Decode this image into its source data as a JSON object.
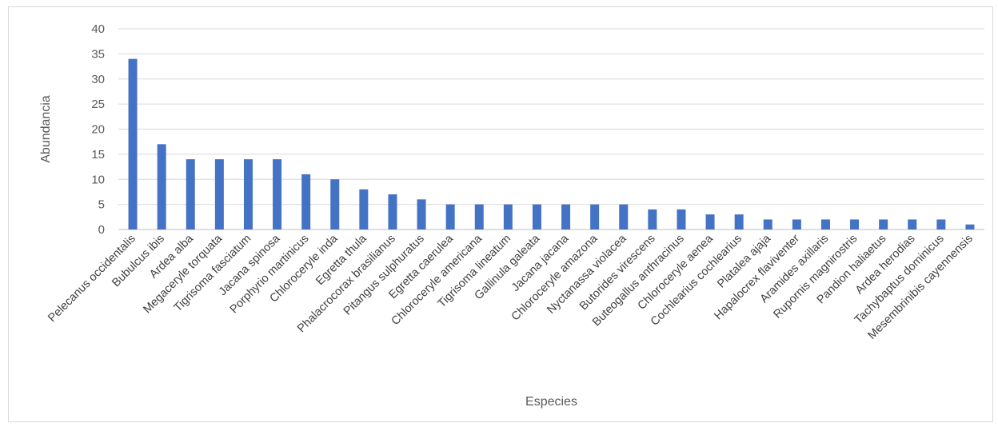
{
  "chart_data": {
    "type": "bar",
    "xlabel": "Especies",
    "ylabel": "Abundancia",
    "ylim": [
      0,
      40
    ],
    "yticks": [
      0,
      5,
      10,
      15,
      20,
      25,
      30,
      35,
      40
    ],
    "grid": true,
    "bar_color": "#4472C4",
    "categories": [
      "Pelecanus occidentalis",
      "Bubulcus ibis",
      "Ardea alba",
      "Megaceryle torquata",
      "Tigrisoma fasciatum",
      "Jacana spinosa",
      "Porphyrio martinicus",
      "Chloroceryle inda",
      "Egretta thula",
      "Phalacrocorax brasilianus",
      "Pitangus sulphuratus",
      "Egretta caerulea",
      "Chloroceryle americana",
      "Tigrisoma lineatum",
      "Gallinula galeata",
      "Jacana jacana",
      "Chloroceryle amazona",
      "Nyctanassa violacea",
      "Butorides virescens",
      "Buteogallus anthracinus",
      "Chloroceryle aenea",
      "Cochlearius cochlearius",
      "Platalea ajaja",
      "Hapalocrex flaviventer",
      "Aramides axillaris",
      "Rupornis magnirostris",
      "Pandion haliaetus",
      "Ardea herodias",
      "Tachybaptus dominicus",
      "Mesembrinibis cayennensis"
    ],
    "values": [
      34,
      17,
      14,
      14,
      14,
      14,
      11,
      10,
      8,
      7,
      6,
      5,
      5,
      5,
      5,
      5,
      5,
      5,
      4,
      4,
      3,
      3,
      2,
      2,
      2,
      2,
      2,
      2,
      2,
      1
    ]
  }
}
